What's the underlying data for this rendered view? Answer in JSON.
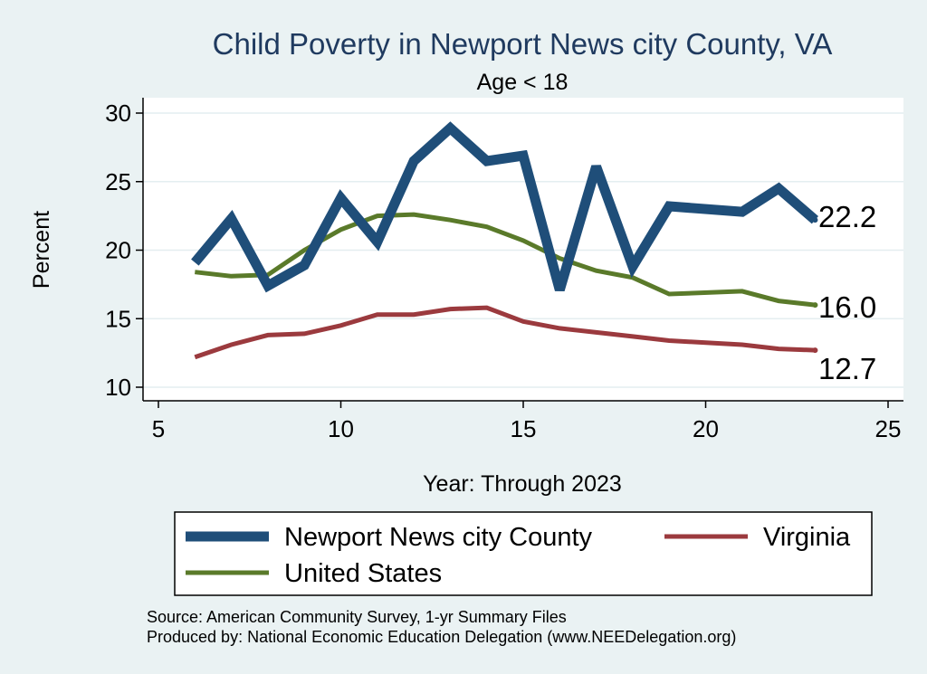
{
  "chart_data": {
    "type": "line",
    "title": "Child Poverty in Newport News city County, VA",
    "subtitle": "Age < 18",
    "xlabel": "Year: Through 2023",
    "ylabel": "Percent",
    "xlim": [
      5,
      25
    ],
    "ylim": [
      10,
      30
    ],
    "xticks": [
      5,
      10,
      15,
      20,
      25
    ],
    "yticks": [
      10,
      15,
      20,
      25,
      30
    ],
    "grid": true,
    "legend_position": "bottom",
    "series": [
      {
        "name": "Newport News city County",
        "color": "#1f4e79",
        "x": [
          6,
          7,
          8,
          9,
          10,
          11,
          12,
          13,
          14,
          15,
          16,
          17,
          18,
          19,
          21,
          22,
          23
        ],
        "values": [
          19.1,
          22.3,
          17.4,
          18.9,
          23.8,
          20.6,
          26.5,
          28.9,
          26.5,
          26.9,
          17.1,
          26.1,
          18.8,
          23.2,
          22.8,
          24.5,
          22.2
        ],
        "end_label": "22.2"
      },
      {
        "name": "Virginia",
        "color": "#9b3a3e",
        "x": [
          6,
          7,
          8,
          9,
          10,
          11,
          12,
          13,
          14,
          15,
          16,
          17,
          18,
          19,
          21,
          22,
          23
        ],
        "values": [
          12.2,
          13.1,
          13.8,
          13.9,
          14.5,
          15.3,
          15.3,
          15.7,
          15.8,
          14.8,
          14.3,
          14.0,
          13.7,
          13.4,
          13.1,
          12.8,
          12.7
        ],
        "end_label": "12.7"
      },
      {
        "name": "United States",
        "color": "#5a7a2a",
        "x": [
          6,
          7,
          8,
          9,
          10,
          11,
          12,
          13,
          14,
          15,
          16,
          17,
          18,
          19,
          21,
          22,
          23
        ],
        "values": [
          18.4,
          18.1,
          18.2,
          20.0,
          21.5,
          22.5,
          22.6,
          22.2,
          21.7,
          20.7,
          19.4,
          18.5,
          18.0,
          16.8,
          17.0,
          16.3,
          16.0
        ],
        "end_label": "16.0"
      }
    ],
    "notes": [
      "Source: American Community Survey, 1-yr Summary Files",
      "Produced by: National Economic Education Delegation (www.NEEDelegation.org)"
    ]
  }
}
